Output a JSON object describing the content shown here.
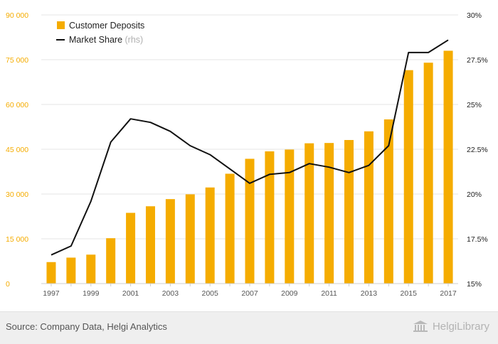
{
  "chart_data": {
    "type": "bar+line",
    "categories": [
      "1997",
      "1998",
      "1999",
      "2000",
      "2001",
      "2002",
      "2003",
      "2004",
      "2005",
      "2006",
      "2007",
      "2008",
      "2009",
      "2010",
      "2011",
      "2012",
      "2013",
      "2014",
      "2015",
      "2016",
      "2017"
    ],
    "x_tick_labels": [
      "1997",
      "1999",
      "2001",
      "2003",
      "2005",
      "2007",
      "2009",
      "2011",
      "2013",
      "2015",
      "2017"
    ],
    "series": [
      {
        "name": "Customer Deposits",
        "type": "bar",
        "axis": "left",
        "color": "#f5ac00",
        "values": [
          7200,
          8700,
          9700,
          15200,
          23700,
          25900,
          28300,
          29900,
          32200,
          36800,
          41800,
          44300,
          44900,
          47000,
          47100,
          48100,
          51000,
          55000,
          71500,
          74000,
          78000
        ]
      },
      {
        "name": "Market Share",
        "name_suffix": "(rhs)",
        "type": "line",
        "axis": "right",
        "color": "#111111",
        "values": [
          16.6,
          17.1,
          19.6,
          22.9,
          24.2,
          24.0,
          23.5,
          22.7,
          22.2,
          21.4,
          20.6,
          21.1,
          21.2,
          21.7,
          21.5,
          21.2,
          21.6,
          22.7,
          27.9,
          27.9,
          28.6
        ]
      }
    ],
    "left_axis": {
      "ylim": [
        0,
        90000
      ],
      "ticks": [
        0,
        15000,
        30000,
        45000,
        60000,
        75000,
        90000
      ],
      "tick_labels": [
        "0",
        "15 000",
        "30 000",
        "45 000",
        "60 000",
        "75 000",
        "90 000"
      ],
      "color": "#f5ac00"
    },
    "right_axis": {
      "ylim": [
        15,
        30
      ],
      "ticks": [
        15,
        17.5,
        20,
        22.5,
        25,
        27.5,
        30
      ],
      "tick_labels": [
        "15%",
        "17.5%",
        "20%",
        "22.5%",
        "25%",
        "27.5%",
        "30%"
      ],
      "color": "#222222"
    },
    "grid": true,
    "legend_position": "top-left"
  },
  "footer": {
    "source": "Source: Company Data, Helgi Analytics",
    "brand": "HelgiLibrary",
    "logo_icon": "library-building-icon"
  }
}
